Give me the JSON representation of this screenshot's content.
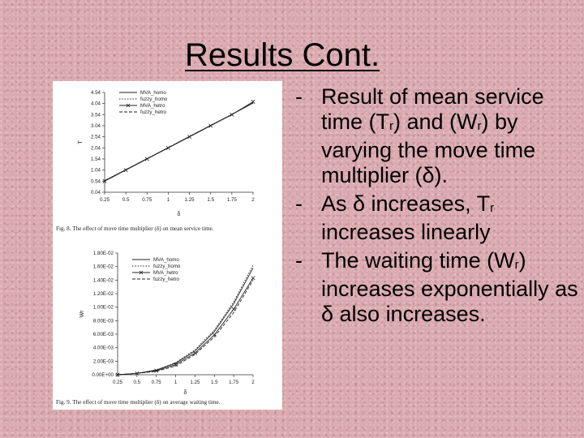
{
  "slide": {
    "title": "Results Cont.",
    "bullets": [
      {
        "marker": "-",
        "parts": [
          "Result of mean service time (T",
          "r",
          ") and (W",
          "r",
          ") by varying the move time multiplier (δ)."
        ]
      },
      {
        "marker": "-",
        "parts": [
          "As δ increases, T",
          "r",
          " increases linearly"
        ]
      },
      {
        "marker": "-",
        "parts": [
          "The waiting time (W",
          "r",
          ") increases exponentially as δ also increases."
        ]
      }
    ]
  },
  "chart_data": [
    {
      "type": "line",
      "caption": "Fig. 8.  The effect of move time multiplier (δ) on mean service time.",
      "xlabel": "δ",
      "ylabel": "T",
      "x_ticks": [
        "0.25",
        "0.5",
        "0.75",
        "1",
        "1.25",
        "1.5",
        "1.75",
        "2"
      ],
      "y_ticks": [
        "0.04",
        "0.54",
        "1.04",
        "1.54",
        "2.04",
        "2.54",
        "3.04",
        "3.54",
        "4.04",
        "4.54"
      ],
      "xlim": [
        0.25,
        2
      ],
      "ylim": [
        0.04,
        4.54
      ],
      "legend_position": "top-left",
      "grid": false,
      "x": [
        0.25,
        0.5,
        0.75,
        1,
        1.25,
        1.5,
        1.75,
        2
      ],
      "series": [
        {
          "name": "MVA_homo",
          "style": "solid",
          "values": [
            0.56,
            1.05,
            1.55,
            2.05,
            2.55,
            3.05,
            3.55,
            4.06
          ]
        },
        {
          "name": "fuzzy_homo",
          "style": "dotted",
          "values": [
            0.57,
            1.06,
            1.56,
            2.06,
            2.56,
            3.06,
            3.56,
            4.07
          ]
        },
        {
          "name": "MVA_hetro",
          "style": "solid-x",
          "values": [
            0.54,
            1.04,
            1.54,
            2.04,
            2.54,
            3.04,
            3.54,
            4.12
          ]
        },
        {
          "name": "fuzzy_hetro",
          "style": "dashed",
          "values": [
            0.55,
            1.05,
            1.55,
            2.05,
            2.55,
            3.05,
            3.55,
            4.08
          ]
        }
      ]
    },
    {
      "type": "line",
      "caption": "Fig. 9.  The effect of move time multiplier (δ) on average waiting time.",
      "xlabel": "δ",
      "ylabel": "Wr",
      "x_ticks": [
        "0.25",
        "0.5",
        "0.75",
        "1",
        "1.25",
        "1.5",
        "1.75",
        "2"
      ],
      "y_ticks": [
        "0.00E+00",
        "2.00E-03",
        "4.00E-03",
        "6.00E-03",
        "8.00E-03",
        "1.00E-02",
        "1.20E-02",
        "1.40E-02",
        "1.60E-02",
        "1.80E-02"
      ],
      "xlim": [
        0.25,
        2
      ],
      "ylim": [
        0,
        0.018
      ],
      "legend_position": "top-left",
      "grid": false,
      "x": [
        0.25,
        0.5,
        0.75,
        1,
        1.25,
        1.5,
        1.75,
        2
      ],
      "series": [
        {
          "name": "MVA_homo",
          "style": "solid",
          "values": [
            0.0,
            0.0002,
            0.0007,
            0.0017,
            0.0035,
            0.0064,
            0.0105,
            0.0158
          ]
        },
        {
          "name": "fuzzy_homo",
          "style": "dotted",
          "values": [
            0.0,
            0.0002,
            0.0007,
            0.0018,
            0.0037,
            0.0066,
            0.0108,
            0.0162
          ]
        },
        {
          "name": "MVA_hetro",
          "style": "solid-x",
          "values": [
            0.0,
            0.0002,
            0.0006,
            0.0015,
            0.0032,
            0.0059,
            0.0097,
            0.0143
          ]
        },
        {
          "name": "fuzzy_hetro",
          "style": "dashed",
          "values": [
            0.0,
            0.0002,
            0.0005,
            0.0013,
            0.003,
            0.0056,
            0.0092,
            0.014
          ]
        }
      ]
    }
  ]
}
